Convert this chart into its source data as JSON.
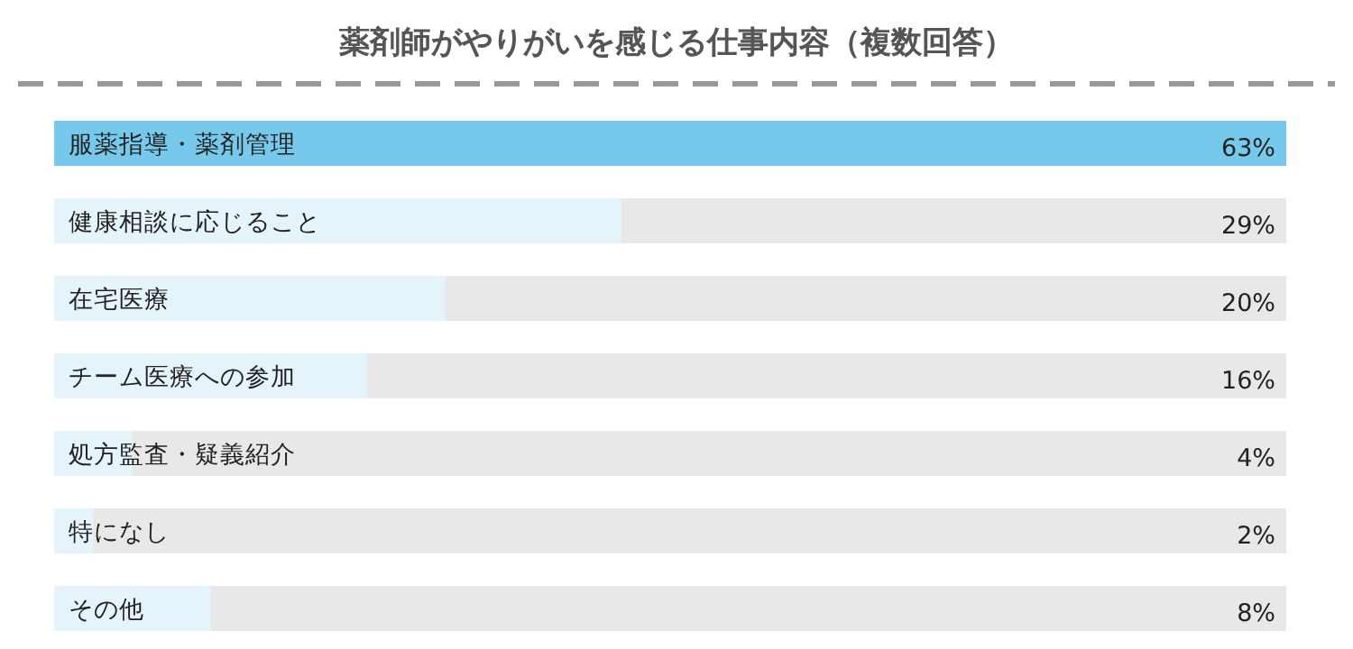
{
  "chart_data": {
    "type": "bar",
    "orientation": "horizontal",
    "title": "薬剤師がやりがいを感じる仕事内容（複数回答）",
    "categories": [
      "服薬指導・薬剤管理",
      "健康相談に応じること",
      "在宅医療",
      "チーム医療への参加",
      "処方監査・疑義紹介",
      "特になし",
      "その他"
    ],
    "values": [
      63,
      29,
      20,
      16,
      4,
      2,
      8
    ],
    "value_labels": [
      "63%",
      "29%",
      "20%",
      "16%",
      "4%",
      "2%",
      "8%"
    ],
    "colors": [
      "#76c9ea",
      "#e4f4fa",
      "#e4f4fa",
      "#e4f4fa",
      "#e4f4fa",
      "#e4f4fa",
      "#e4f4fa"
    ]
  }
}
